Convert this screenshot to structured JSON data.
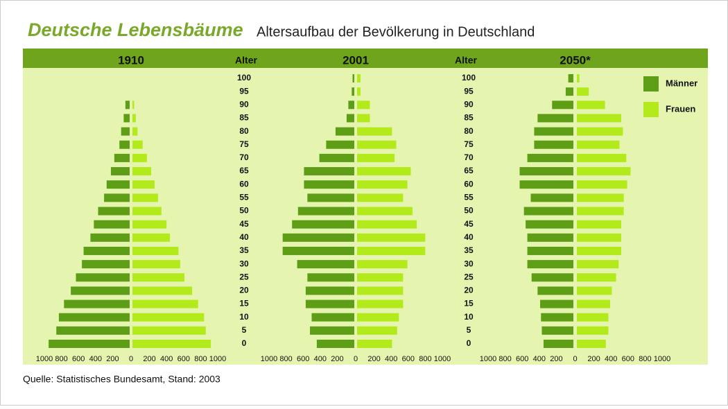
{
  "title": "Deutsche Lebensbäume",
  "subtitle": "Altersaufbau der Bevölkerung in Deutschland",
  "source": "Quelle: Statistisches Bundesamt, Stand: 2003",
  "age_label": "Alter",
  "ages": [
    0,
    5,
    10,
    15,
    20,
    25,
    30,
    35,
    40,
    45,
    50,
    55,
    60,
    65,
    70,
    75,
    80,
    85,
    90,
    95,
    100
  ],
  "chart_data": [
    {
      "type": "pyramid",
      "title": "1910",
      "xlim": [
        0,
        1000
      ],
      "xticks": [
        0,
        200,
        400,
        600,
        800,
        1000
      ],
      "series": [
        {
          "name": "Männer",
          "color": "#5e9e16",
          "values": [
            950,
            860,
            830,
            770,
            690,
            630,
            560,
            540,
            460,
            420,
            370,
            300,
            270,
            220,
            180,
            120,
            100,
            70,
            50,
            0,
            0
          ]
        },
        {
          "name": "Frauen",
          "color": "#b3ea1c",
          "values": [
            920,
            860,
            840,
            770,
            700,
            610,
            560,
            540,
            440,
            400,
            340,
            300,
            260,
            220,
            170,
            120,
            60,
            40,
            20,
            0,
            0
          ]
        }
      ]
    },
    {
      "type": "pyramid",
      "title": "2001",
      "xlim": [
        0,
        1000
      ],
      "xticks": [
        0,
        200,
        400,
        600,
        800,
        1000
      ],
      "series": [
        {
          "name": "Männer",
          "color": "#5e9e16",
          "values": [
            440,
            520,
            500,
            570,
            570,
            550,
            670,
            840,
            840,
            730,
            660,
            550,
            590,
            590,
            410,
            330,
            220,
            90,
            70,
            30,
            20
          ]
        },
        {
          "name": "Frauen",
          "color": "#b3ea1c",
          "values": [
            410,
            470,
            490,
            540,
            540,
            540,
            590,
            800,
            800,
            700,
            650,
            540,
            590,
            630,
            440,
            460,
            410,
            150,
            150,
            40,
            40
          ]
        }
      ]
    },
    {
      "type": "pyramid",
      "title": "2050*",
      "xlim": [
        0,
        1000
      ],
      "xticks": [
        0,
        200,
        400,
        600,
        800,
        1000
      ],
      "series": [
        {
          "name": "Männer",
          "color": "#5e9e16",
          "values": [
            350,
            370,
            380,
            390,
            420,
            490,
            540,
            540,
            540,
            560,
            580,
            500,
            630,
            630,
            540,
            460,
            460,
            420,
            250,
            90,
            60
          ]
        },
        {
          "name": "Frauen",
          "color": "#b3ea1c",
          "values": [
            340,
            370,
            370,
            390,
            410,
            460,
            490,
            520,
            520,
            520,
            550,
            550,
            590,
            630,
            580,
            500,
            540,
            520,
            330,
            140,
            30
          ]
        }
      ]
    }
  ]
}
